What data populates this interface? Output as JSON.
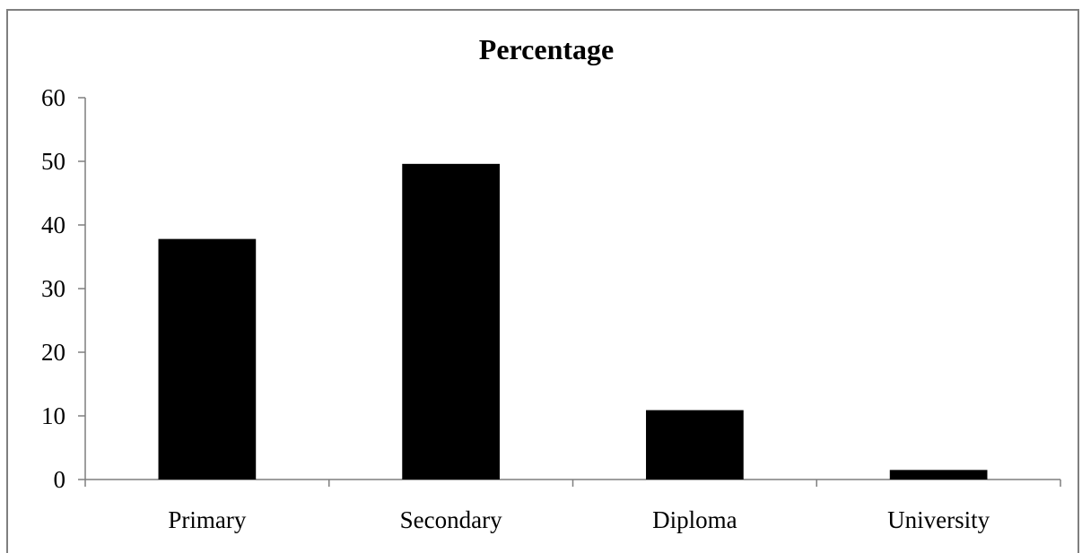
{
  "chart_data": {
    "type": "bar",
    "title": "Percentage",
    "xlabel": "",
    "ylabel": "",
    "categories": [
      "Primary",
      "Secondary",
      "Diploma",
      "University"
    ],
    "values": [
      37.8,
      49.6,
      10.9,
      1.5
    ],
    "ylim": [
      0,
      60
    ],
    "yticks": [
      "0",
      "10",
      "20",
      "30",
      "40",
      "50",
      "60"
    ],
    "grid": false,
    "legend": "none",
    "bar_color": "#000000",
    "axis_color": "#7f7f7f"
  }
}
